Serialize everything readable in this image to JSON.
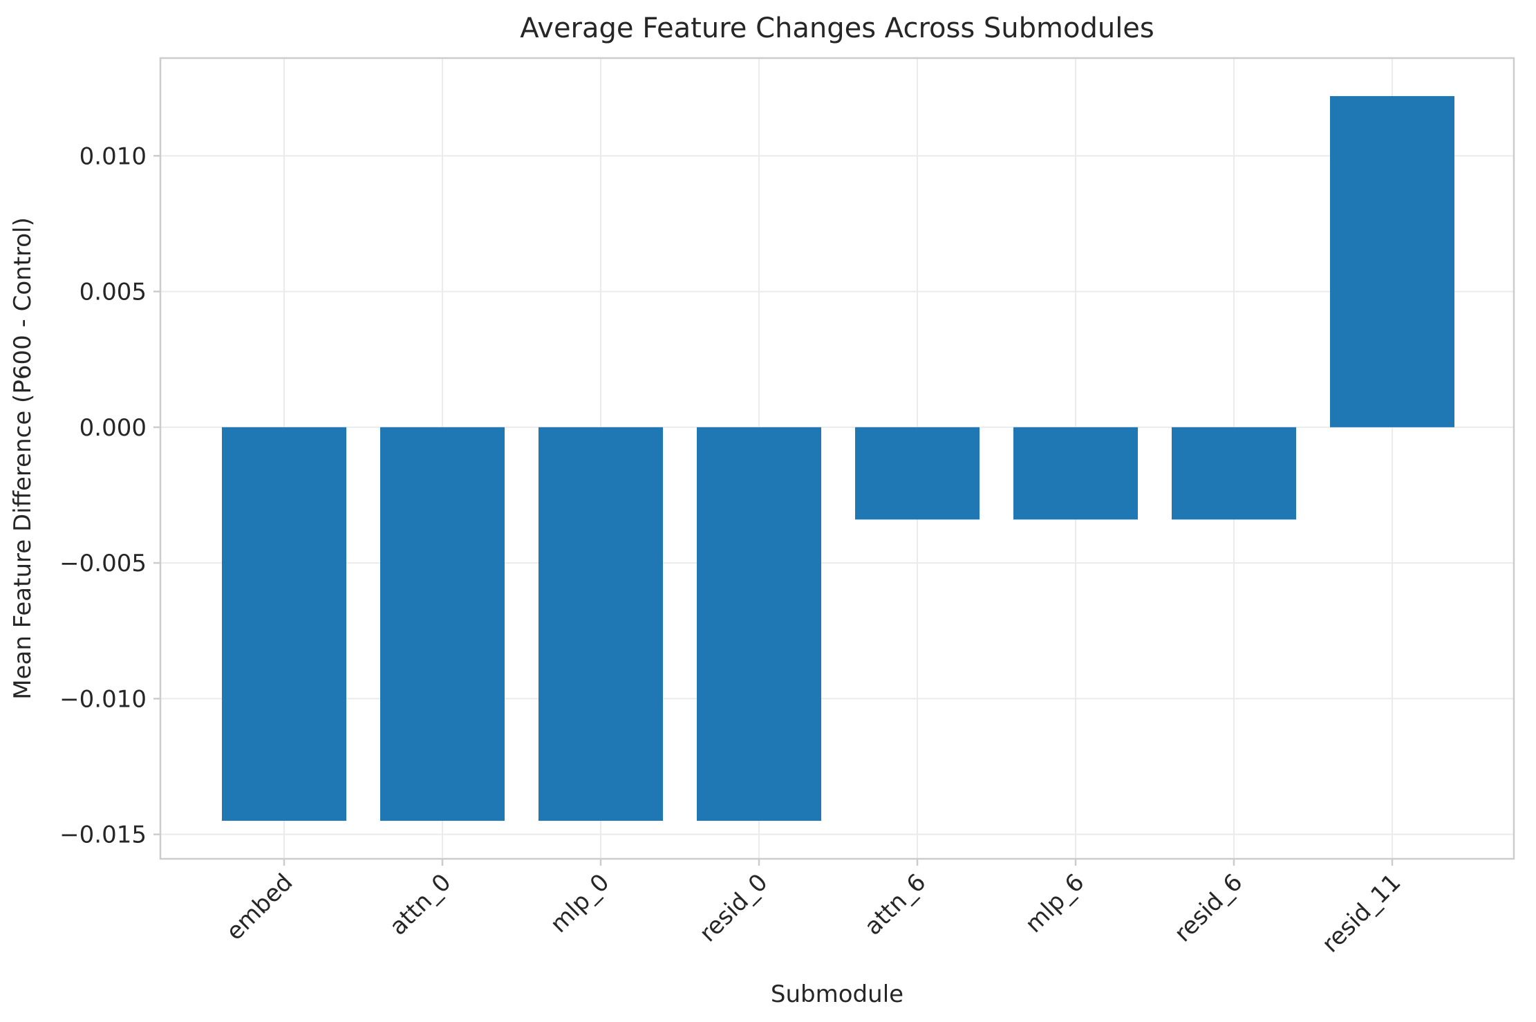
{
  "chart_data": {
    "type": "bar",
    "title": "Average Feature Changes Across Submodules",
    "xlabel": "Submodule",
    "ylabel": "Mean Feature Difference (P600 - Control)",
    "categories": [
      "embed",
      "attn_0",
      "mlp_0",
      "resid_0",
      "attn_6",
      "mlp_6",
      "resid_6",
      "resid_11"
    ],
    "values": [
      -0.0145,
      -0.0145,
      -0.0145,
      -0.0145,
      -0.0034,
      -0.0034,
      -0.0034,
      0.0122
    ],
    "ylim": [
      -0.0159,
      0.0136
    ],
    "yticks": [
      0.01,
      0.005,
      0.0,
      -0.005,
      -0.01,
      -0.015
    ],
    "ytick_labels": [
      "0.010",
      "0.005",
      "0.000",
      "−0.005",
      "−0.010",
      "−0.015"
    ],
    "grid": true,
    "bar_color": "#1f77b4",
    "xtick_rotation": 45
  }
}
